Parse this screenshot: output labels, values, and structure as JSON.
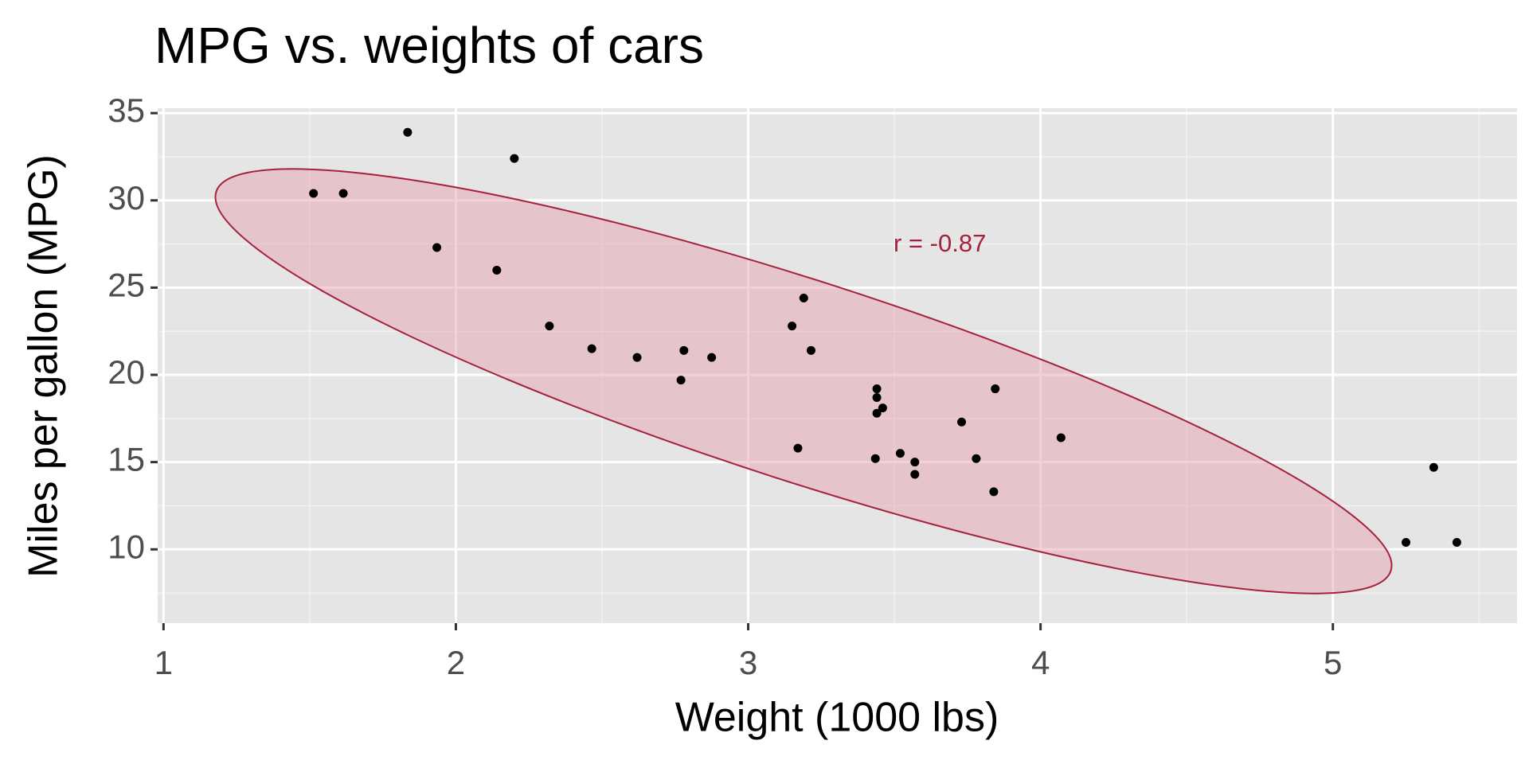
{
  "chart_data": {
    "type": "scatter",
    "title": "MPG vs. weights of cars",
    "xlabel": "Weight (1000 lbs)",
    "ylabel": "Miles per gallon (MPG)",
    "annotation": "r = -0.87",
    "x": [
      2.62,
      2.875,
      2.32,
      3.215,
      3.44,
      3.46,
      3.57,
      3.19,
      3.15,
      3.44,
      3.44,
      4.07,
      3.73,
      3.78,
      5.25,
      5.424,
      5.345,
      2.2,
      1.615,
      1.835,
      2.465,
      3.52,
      3.435,
      3.84,
      3.845,
      1.935,
      2.14,
      1.513,
      3.17,
      2.77,
      3.57,
      2.78
    ],
    "values": [
      21,
      21,
      22.8,
      21.4,
      18.7,
      18.1,
      14.3,
      24.4,
      22.8,
      19.2,
      17.8,
      16.4,
      17.3,
      15.2,
      10.4,
      10.4,
      14.7,
      32.4,
      30.4,
      33.9,
      21.5,
      15.5,
      15.2,
      13.3,
      19.2,
      27.3,
      26,
      30.4,
      15.8,
      19.7,
      15,
      21.4
    ],
    "color": "#000000",
    "ellipse_color": "#a6213c",
    "xlim": [
      0.98,
      5.63
    ],
    "xticks": [
      1,
      2,
      3,
      4,
      5
    ],
    "ylim": [
      5.77,
      35.28
    ],
    "yticks": [
      10,
      15,
      20,
      25,
      30,
      35
    ],
    "grid": true
  }
}
